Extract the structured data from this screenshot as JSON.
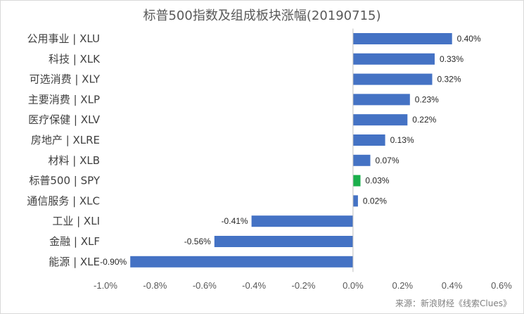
{
  "chart_data": {
    "type": "bar",
    "orientation": "horizontal",
    "title": "标普500指数及组成板块涨幅(20190715)",
    "categories": [
      "公用事业 | XLU",
      "科技 | XLK",
      "可选消费 | XLY",
      "主要消费 | XLP",
      "医疗保健 | XLV",
      "房地产 | XLRE",
      "材料 | XLB",
      "标普500 | SPY",
      "通信服务 | XLC",
      "工业 | XLI",
      "金融 | XLF",
      "能源 | XLE"
    ],
    "values": [
      0.4,
      0.33,
      0.32,
      0.23,
      0.22,
      0.13,
      0.07,
      0.03,
      0.02,
      -0.41,
      -0.56,
      -0.9
    ],
    "value_labels": [
      "0.40%",
      "0.33%",
      "0.32%",
      "0.23%",
      "0.22%",
      "0.13%",
      "0.07%",
      "0.03%",
      "0.02%",
      "-0.41%",
      "-0.56%",
      "-0.90%"
    ],
    "xlim": [
      -1.0,
      0.6
    ],
    "xticks": [
      -1.0,
      -0.8,
      -0.6,
      -0.4,
      -0.2,
      0.0,
      0.2,
      0.4,
      0.6
    ],
    "xtick_labels": [
      "-1.0%",
      "-0.8%",
      "-0.6%",
      "-0.4%",
      "-0.2%",
      "0.0%",
      "0.2%",
      "0.4%",
      "0.6%"
    ],
    "bar_color": "#4472c4",
    "highlight_color": "#1aaf4b",
    "highlight_category": "标普500 | SPY",
    "grid": false,
    "legend": "none"
  },
  "source": "来源：新浪财经《线索Clues》"
}
